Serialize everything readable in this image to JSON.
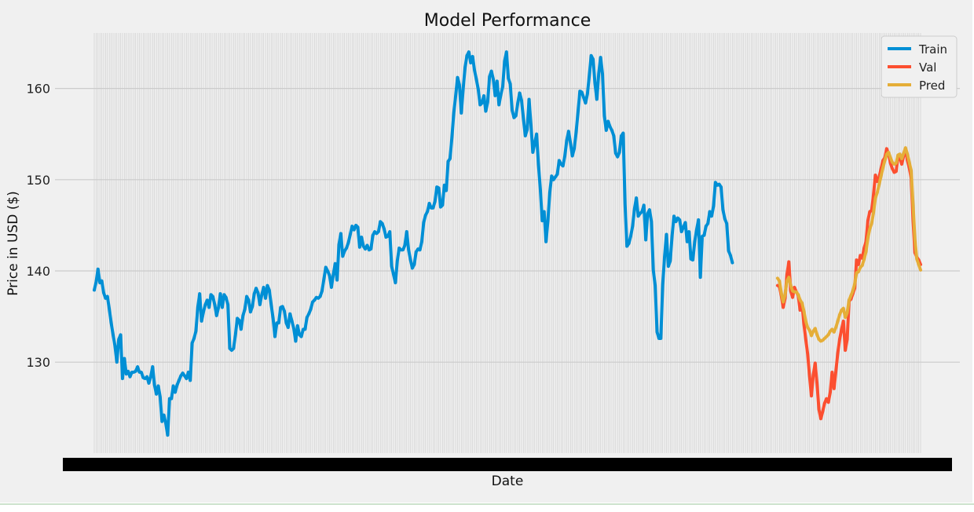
{
  "chart_data": {
    "type": "line",
    "title": "Model Performance",
    "xlabel": "Date",
    "ylabel": "Price in USD ($)",
    "ylim": [
      120,
      166
    ],
    "yticks": [
      130,
      140,
      150,
      160
    ],
    "grid": true,
    "legend_position": "top-right",
    "x_tick_labels_overlapping": true,
    "series": [
      {
        "name": "Train",
        "color": "#008fd5",
        "x_start": 0,
        "values": [
          137.9,
          138.8,
          140.2,
          138.7,
          138.9,
          137.6,
          137.0,
          137.2,
          135.8,
          134.3,
          133.0,
          131.8,
          130.0,
          132.5,
          133.0,
          128.2,
          130.4,
          128.7,
          129.0,
          128.4,
          128.9,
          128.9,
          129.0,
          129.5,
          128.9,
          128.9,
          128.3,
          128.2,
          128.4,
          127.7,
          128.4,
          129.5,
          127.5,
          126.5,
          127.4,
          126.2,
          123.5,
          124.2,
          123.3,
          122.0,
          126.0,
          126.0,
          127.4,
          126.7,
          127.5,
          128.0,
          128.5,
          128.8,
          128.5,
          128.2,
          128.9,
          128.0,
          132.1,
          132.6,
          133.4,
          136.0,
          137.5,
          134.5,
          135.5,
          136.3,
          136.8,
          136.0,
          137.4,
          137.2,
          136.3,
          135.1,
          136.0,
          137.5,
          136.0,
          137.4,
          137.1,
          136.3,
          131.5,
          131.3,
          131.5,
          133.0,
          134.8,
          134.6,
          133.6,
          135.1,
          135.8,
          137.2,
          136.8,
          135.5,
          136.1,
          137.5,
          138.1,
          137.6,
          136.3,
          137.4,
          138.2,
          137.0,
          138.4,
          137.9,
          136.3,
          134.8,
          132.8,
          134.3,
          134.3,
          136.0,
          136.1,
          135.6,
          134.3,
          133.8,
          135.3,
          134.5,
          133.7,
          132.3,
          134.0,
          133.0,
          132.8,
          133.6,
          133.6,
          134.9,
          135.3,
          135.8,
          136.6,
          136.8,
          137.1,
          137.0,
          137.2,
          137.8,
          139.1,
          140.4,
          140.0,
          139.5,
          138.2,
          139.6,
          140.8,
          139.0,
          142.9,
          144.1,
          141.6,
          142.2,
          142.5,
          143.1,
          144.0,
          144.9,
          144.5,
          145.0,
          144.8,
          142.6,
          143.7,
          142.7,
          142.4,
          142.8,
          142.3,
          142.4,
          143.9,
          144.3,
          144.1,
          144.3,
          145.4,
          145.2,
          144.6,
          143.7,
          143.8,
          144.3,
          140.5,
          139.6,
          138.7,
          141.1,
          142.5,
          142.3,
          142.3,
          142.8,
          144.3,
          142.3,
          141.2,
          140.3,
          140.7,
          142.1,
          142.4,
          142.3,
          143.2,
          145.3,
          146.1,
          146.5,
          147.4,
          146.9,
          146.9,
          147.6,
          149.2,
          149.1,
          147.0,
          147.2,
          149.4,
          148.8,
          152.0,
          152.3,
          154.6,
          157.3,
          159.2,
          161.2,
          160.4,
          157.3,
          160.0,
          162.3,
          163.6,
          164.0,
          162.8,
          163.5,
          162.0,
          161.0,
          159.9,
          158.2,
          158.4,
          159.2,
          157.5,
          158.5,
          161.3,
          161.9,
          161.0,
          159.2,
          160.8,
          158.2,
          159.3,
          160.2,
          163.0,
          164.0,
          161.1,
          160.5,
          157.6,
          156.8,
          157.0,
          158.4,
          159.5,
          158.7,
          156.7,
          154.8,
          155.5,
          158.8,
          156.0,
          153.0,
          154.0,
          155.0,
          151.6,
          148.9,
          145.5,
          146.5,
          143.2,
          145.5,
          148.6,
          150.4,
          150.0,
          150.3,
          150.6,
          152.1,
          151.7,
          151.5,
          152.6,
          154.3,
          155.3,
          154.0,
          152.6,
          153.4,
          155.2,
          157.4,
          159.7,
          159.6,
          159.0,
          158.4,
          159.4,
          161.4,
          163.6,
          163.2,
          160.6,
          158.8,
          161.6,
          163.4,
          161.6,
          157.0,
          155.4,
          156.4,
          155.8,
          155.4,
          154.8,
          152.9,
          152.5,
          153.0,
          154.8,
          155.1,
          147.3,
          142.7,
          143.0,
          143.8,
          144.9,
          146.8,
          148.0,
          146.0,
          146.3,
          146.5,
          147.2,
          143.4,
          146.3,
          146.7,
          145.4,
          140.1,
          138.4,
          133.3,
          132.6,
          132.6,
          138.5,
          141.6,
          144.0,
          140.5,
          141.1,
          143.9,
          146.0,
          145.4,
          145.8,
          145.6,
          144.3,
          144.8,
          145.3,
          143.2,
          144.3,
          141.3,
          141.2,
          143.2,
          144.5,
          145.6,
          139.3,
          143.8,
          143.9,
          144.9,
          145.2,
          146.5,
          146.0,
          147.1,
          149.7,
          149.4,
          149.5,
          149.2,
          146.7,
          145.7,
          145.2,
          142.2,
          141.7,
          140.9
        ]
      },
      {
        "name": "Val",
        "color": "#fc4f30",
        "x_start": 363,
        "values": [
          138.4,
          138.3,
          137.3,
          136.0,
          137.0,
          139.6,
          141.0,
          137.8,
          137.1,
          138.2,
          137.7,
          137.3,
          135.7,
          136.4,
          134.2,
          132.5,
          130.9,
          128.5,
          126.3,
          128.6,
          129.9,
          127.6,
          124.8,
          123.8,
          124.6,
          125.5,
          126.0,
          125.6,
          126.7,
          128.9,
          127.1,
          129.0,
          131.0,
          132.5,
          133.6,
          134.5,
          131.3,
          132.5,
          136.7,
          136.9,
          137.5,
          138.1,
          141.2,
          140.7,
          141.7,
          141.4,
          142.5,
          143.2,
          145.5,
          146.5,
          146.6,
          148.4,
          150.5,
          149.8,
          150.3,
          151.2,
          152.1,
          152.4,
          153.4,
          152.8,
          151.8,
          151.2,
          150.8,
          150.9,
          152.5,
          152.4,
          151.7,
          152.6,
          153.4,
          152.1,
          151.3,
          150.2,
          145.6,
          142.0,
          141.5,
          141.2,
          140.7
        ]
      },
      {
        "name": "Pred",
        "color": "#e5ae38",
        "x_start": 363,
        "values": [
          139.2,
          138.9,
          137.6,
          136.6,
          137.4,
          138.9,
          139.3,
          138.4,
          137.8,
          137.7,
          137.7,
          137.4,
          136.8,
          136.5,
          135.6,
          134.5,
          133.8,
          133.5,
          132.9,
          133.4,
          133.7,
          133.0,
          132.5,
          132.3,
          132.4,
          132.6,
          132.8,
          133.0,
          133.4,
          133.6,
          133.3,
          133.8,
          134.5,
          135.2,
          135.7,
          135.9,
          134.9,
          135.4,
          136.8,
          137.3,
          137.8,
          138.6,
          139.8,
          139.9,
          140.4,
          140.6,
          141.3,
          142.1,
          143.6,
          144.6,
          145.2,
          146.4,
          148.0,
          148.6,
          149.5,
          150.4,
          151.3,
          152.1,
          152.8,
          153.0,
          152.4,
          151.9,
          151.7,
          151.8,
          152.7,
          152.8,
          152.3,
          152.9,
          153.5,
          152.8,
          151.9,
          151.0,
          147.3,
          143.4,
          141.3,
          140.7,
          140.1
        ]
      }
    ]
  }
}
